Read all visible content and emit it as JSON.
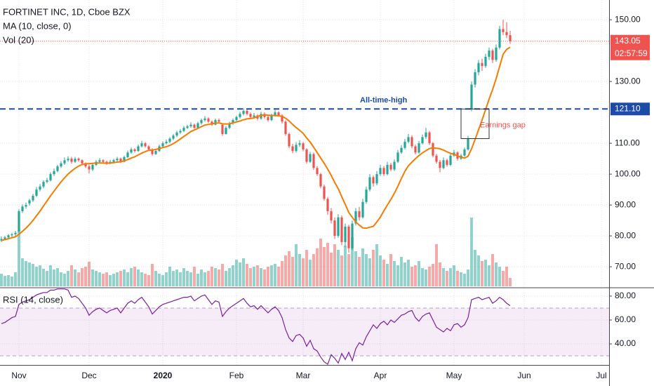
{
  "chart_data": {
    "type": "candlestick",
    "title": "FORTINET INC, 1D, Cboe BZX",
    "ma_label": "MA (10, close, 0)",
    "vol_label": "Vol (20)",
    "up_color": "#26a69a",
    "down_color": "#ef5350",
    "ma_color": "#f57c00",
    "grid": true,
    "xlim": [
      -0.4,
      173.2
    ],
    "xticks": [
      {
        "value": 5,
        "label": "Nov"
      },
      {
        "value": 25,
        "label": "Dec"
      },
      {
        "value": 46,
        "label": "2020",
        "bold": true
      },
      {
        "value": 67,
        "label": "Feb"
      },
      {
        "value": 86,
        "label": "Mar"
      },
      {
        "value": 108,
        "label": "Apr"
      },
      {
        "value": 129,
        "label": "May"
      },
      {
        "value": 149,
        "label": "Jun"
      },
      {
        "value": 171,
        "label": "Jul"
      }
    ],
    "ylim": [
      63.2,
      156.4
    ],
    "yticks": [
      {
        "value": 150,
        "label": "150.00"
      },
      {
        "value": 130,
        "label": "130.00"
      },
      {
        "value": 110,
        "label": "110.00"
      },
      {
        "value": 100,
        "label": "100.00"
      },
      {
        "value": 90,
        "label": "90.00"
      },
      {
        "value": 80,
        "label": "80.00"
      },
      {
        "value": 70,
        "label": "70.00"
      }
    ],
    "last": {
      "value": 143.05,
      "countdown": "02:57:59"
    },
    "ath": {
      "value": 121.1,
      "label": "121.10",
      "text": "All-time-high",
      "color": "#1e4aa8"
    },
    "gap": {
      "text": "Earnings gap",
      "top": 121.1,
      "bottom": 111.5
    },
    "ohlc": [
      [
        78.5,
        79.8,
        78,
        79
      ],
      [
        79,
        80,
        78.6,
        79.5
      ],
      [
        79.5,
        80.6,
        79.2,
        80.2
      ],
      [
        80.2,
        81,
        79.6,
        80.5
      ],
      [
        80.5,
        81.6,
        80,
        81
      ],
      [
        81.5,
        88.6,
        81,
        88
      ],
      [
        88,
        90.2,
        87.4,
        89.5
      ],
      [
        89.5,
        90.8,
        88.8,
        90
      ],
      [
        90.5,
        92,
        89.8,
        91.5
      ],
      [
        91.5,
        93.6,
        91,
        93
      ],
      [
        93,
        95.8,
        92.6,
        95
      ],
      [
        95,
        96.8,
        94.4,
        96
      ],
      [
        96,
        98,
        95.4,
        97.5
      ],
      [
        97.5,
        98.8,
        97,
        98
      ],
      [
        98,
        100.6,
        97.6,
        100
      ],
      [
        100,
        101.8,
        99.4,
        101
      ],
      [
        101,
        103,
        100.6,
        102.5
      ],
      [
        102.5,
        104.2,
        102,
        103.5
      ],
      [
        103.5,
        105.4,
        103,
        104.5
      ],
      [
        104.5,
        105.8,
        104,
        105
      ],
      [
        105,
        105.6,
        103.4,
        104
      ],
      [
        104,
        105.6,
        103.6,
        105
      ],
      [
        105,
        105.4,
        104,
        104.5
      ],
      [
        104.5,
        104.8,
        103,
        103.5
      ],
      [
        103.5,
        103.8,
        102,
        102.5
      ],
      [
        102.5,
        103,
        100.2,
        101.5
      ],
      [
        101.5,
        103.4,
        101,
        103
      ],
      [
        103,
        104.6,
        102.6,
        104
      ],
      [
        104,
        105.2,
        103.6,
        104.5
      ],
      [
        104.5,
        104.8,
        103.6,
        104
      ],
      [
        104,
        104.4,
        103,
        103.5
      ],
      [
        103.5,
        104.6,
        103.2,
        104
      ],
      [
        104,
        105,
        103.6,
        104.5
      ],
      [
        104.5,
        105.6,
        104,
        105
      ],
      [
        105,
        105.4,
        103.6,
        104
      ],
      [
        104,
        106,
        103.8,
        105.5
      ],
      [
        105.5,
        107.6,
        105.2,
        107
      ],
      [
        107,
        108.6,
        106.6,
        108
      ],
      [
        108,
        108.4,
        107,
        107.5
      ],
      [
        107.5,
        109.6,
        107.2,
        109
      ],
      [
        109,
        110.8,
        108.6,
        110
      ],
      [
        110,
        110.4,
        108.6,
        109
      ],
      [
        109,
        109.4,
        107.6,
        108
      ],
      [
        108,
        108.4,
        106,
        106.5
      ],
      [
        106.5,
        108,
        106.2,
        107.5
      ],
      [
        107.5,
        109.6,
        107.2,
        109
      ],
      [
        109,
        110.6,
        108.6,
        110
      ],
      [
        110,
        111.2,
        109.6,
        110.5
      ],
      [
        110.5,
        112,
        110,
        111.5
      ],
      [
        111.5,
        113,
        111,
        112.5
      ],
      [
        112.5,
        114,
        112,
        113.5
      ],
      [
        113.5,
        114.6,
        113,
        114
      ],
      [
        114,
        115.6,
        113.6,
        115
      ],
      [
        115,
        116,
        114.6,
        115.5
      ],
      [
        115.5,
        116.8,
        115,
        116
      ],
      [
        116,
        116.4,
        114.6,
        115
      ],
      [
        115,
        117,
        114.8,
        116.5
      ],
      [
        116.5,
        118,
        116,
        117.5
      ],
      [
        117.5,
        118.8,
        117,
        118
      ],
      [
        118,
        118.4,
        116.6,
        117
      ],
      [
        117,
        117.4,
        115.6,
        116
      ],
      [
        116,
        118,
        115.8,
        117.5
      ],
      [
        117.5,
        118,
        116.6,
        117
      ],
      [
        116,
        116.4,
        112.4,
        113
      ],
      [
        113,
        115.6,
        112.8,
        115
      ],
      [
        115,
        117,
        114.6,
        116.5
      ],
      [
        116.5,
        118,
        116,
        117.5
      ],
      [
        117.5,
        119,
        117,
        118.5
      ],
      [
        118.5,
        120.2,
        118,
        119.5
      ],
      [
        119.5,
        121.4,
        119,
        120.5
      ],
      [
        120.5,
        121,
        119,
        119.5
      ],
      [
        119.5,
        120,
        118,
        118.5
      ],
      [
        118.5,
        119.8,
        118,
        119
      ],
      [
        119,
        119.4,
        117.4,
        118
      ],
      [
        118,
        120.2,
        117.6,
        119.5
      ],
      [
        119.5,
        120,
        118,
        118.5
      ],
      [
        118.5,
        119,
        117,
        117.5
      ],
      [
        117.5,
        119.6,
        117.2,
        119
      ],
      [
        119,
        120.8,
        118.6,
        120
      ],
      [
        120,
        120.4,
        118.6,
        119
      ],
      [
        119,
        119.4,
        116.4,
        117
      ],
      [
        117,
        117.4,
        112.4,
        113
      ],
      [
        113,
        113.4,
        108.4,
        109
      ],
      [
        109,
        109.8,
        106.8,
        107.5
      ],
      [
        107.5,
        110.4,
        107,
        109.5
      ],
      [
        109.5,
        111,
        108.8,
        110
      ],
      [
        110,
        110.4,
        107.4,
        108
      ],
      [
        108,
        108.4,
        103.4,
        104
      ],
      [
        104,
        107.2,
        103.6,
        106.5
      ],
      [
        106.5,
        107,
        101.4,
        102
      ],
      [
        102,
        102.6,
        99.4,
        100
      ],
      [
        100,
        100.4,
        95.4,
        96
      ],
      [
        96,
        96.6,
        91.4,
        92
      ],
      [
        92,
        92.6,
        86.8,
        88
      ],
      [
        88,
        89,
        84,
        85
      ],
      [
        85,
        86,
        79,
        80
      ],
      [
        80,
        87,
        79.4,
        86
      ],
      [
        86,
        86.6,
        77,
        78
      ],
      [
        78,
        84,
        76.4,
        83
      ],
      [
        83,
        83.6,
        74.6,
        76
      ],
      [
        76,
        85,
        75.4,
        84
      ],
      [
        84,
        89,
        83.4,
        88
      ],
      [
        88,
        89.4,
        85,
        86
      ],
      [
        86,
        92,
        85.6,
        91
      ],
      [
        91,
        96,
        90.4,
        95
      ],
      [
        95,
        100,
        94.4,
        99
      ],
      [
        99,
        99.6,
        96,
        97
      ],
      [
        97,
        101,
        96.4,
        100
      ],
      [
        100,
        103,
        99.4,
        102
      ],
      [
        102,
        102.6,
        99.4,
        100
      ],
      [
        100,
        104,
        99.6,
        103
      ],
      [
        103,
        103.6,
        101,
        101.5
      ],
      [
        101.5,
        104.8,
        101,
        104
      ],
      [
        104,
        107.8,
        103.6,
        107
      ],
      [
        107,
        109.4,
        106.6,
        108.5
      ],
      [
        108.5,
        111.4,
        108,
        110.5
      ],
      [
        110.5,
        113,
        110,
        112
      ],
      [
        112,
        112.6,
        108.4,
        109
      ],
      [
        109,
        109.6,
        106.4,
        107
      ],
      [
        107,
        110.8,
        106.6,
        110
      ],
      [
        110,
        112.8,
        109.6,
        112
      ],
      [
        112,
        115,
        111.4,
        113.5
      ],
      [
        113.5,
        114,
        109.4,
        110
      ],
      [
        110,
        110.4,
        105.4,
        106
      ],
      [
        106,
        106.6,
        103.4,
        104
      ],
      [
        104,
        104.6,
        100.6,
        102
      ],
      [
        102,
        105.4,
        101.6,
        104.5
      ],
      [
        104.5,
        105,
        102.4,
        103
      ],
      [
        103,
        106.6,
        102.6,
        106
      ],
      [
        106,
        107.8,
        105.6,
        107
      ],
      [
        107,
        107.4,
        104.4,
        105
      ],
      [
        105,
        106.6,
        104.6,
        106
      ],
      [
        106,
        108.6,
        105.6,
        108
      ],
      [
        108,
        112.4,
        107.6,
        111.5
      ],
      [
        121,
        130,
        120.4,
        129
      ],
      [
        129,
        134,
        128,
        133
      ],
      [
        133,
        137,
        132,
        136
      ],
      [
        136,
        137.4,
        133.4,
        135
      ],
      [
        135,
        139,
        134.4,
        138
      ],
      [
        138,
        141,
        137,
        140
      ],
      [
        140,
        140.6,
        136,
        137
      ],
      [
        137,
        142,
        136.4,
        141
      ],
      [
        141,
        148,
        140.4,
        147
      ],
      [
        147,
        150,
        145,
        146
      ],
      [
        146,
        149.2,
        144,
        145
      ],
      [
        145,
        146.4,
        142.2,
        143.05
      ]
    ],
    "volume": [
      1.8,
      1.5,
      1.6,
      1.4,
      2.0,
      8.0,
      4.0,
      3.6,
      3.4,
      3.2,
      2.8,
      3.0,
      2.5,
      2.2,
      3.0,
      2.4,
      2.6,
      2.0,
      1.8,
      2.2,
      3.0,
      2.4,
      2.0,
      2.6,
      2.8,
      3.5,
      2.4,
      2.2,
      2.0,
      1.8,
      2.0,
      1.6,
      1.8,
      2.0,
      2.2,
      2.4,
      2.0,
      2.6,
      2.8,
      2.4,
      2.0,
      1.8,
      1.6,
      3.2,
      2.2,
      1.8,
      1.6,
      2.0,
      2.8,
      2.2,
      2.4,
      2.0,
      2.6,
      2.2,
      2.0,
      2.8,
      1.8,
      2.4,
      2.0,
      2.2,
      2.8,
      2.6,
      2.4,
      3.2,
      2.2,
      2.6,
      3.0,
      3.8,
      3.4,
      4.0,
      3.2,
      2.6,
      2.8,
      3.0,
      2.6,
      2.4,
      2.8,
      3.0,
      3.2,
      2.8,
      3.6,
      4.4,
      5.0,
      4.2,
      6.0,
      4.6,
      4.0,
      5.2,
      3.8,
      4.6,
      5.4,
      6.8,
      5.6,
      6.2,
      4.8,
      6.0,
      5.2,
      4.4,
      5.8,
      4.6,
      7.0,
      5.0,
      4.2,
      5.4,
      4.6,
      4.0,
      5.2,
      6.0,
      4.4,
      3.8,
      3.2,
      4.6,
      3.6,
      3.0,
      4.2,
      3.4,
      3.8,
      2.8,
      3.0,
      3.6,
      2.6,
      2.4,
      2.8,
      3.2,
      6.0,
      3.4,
      2.6,
      2.2,
      2.6,
      3.0,
      2.2,
      2.0,
      1.8,
      2.4,
      9.8,
      5.2,
      4.4,
      3.6,
      3.8,
      3.0,
      4.6,
      3.4,
      2.8,
      2.2,
      2.8,
      1.2
    ],
    "ma": [
      78.5,
      78.8,
      79.1,
      79.4,
      79.7,
      80.5,
      81.5,
      82.5,
      83.7,
      85,
      86.5,
      88,
      89.7,
      91.3,
      93,
      94.5,
      96,
      97.5,
      98.8,
      100,
      101,
      101.9,
      102.6,
      103.1,
      103.4,
      103.4,
      103.5,
      103.6,
      103.6,
      103.6,
      103.5,
      103.6,
      103.7,
      103.9,
      104,
      104.3,
      104.7,
      105.2,
      105.6,
      106.2,
      106.8,
      107.3,
      107.7,
      107.8,
      108,
      108.3,
      108.6,
      108.9,
      109.3,
      109.9,
      110.6,
      111.4,
      112.2,
      113,
      113.8,
      114.3,
      114.8,
      115.4,
      115.9,
      116.1,
      116.3,
      116.5,
      116.6,
      116.3,
      116.2,
      116.3,
      116.6,
      116.9,
      117.2,
      117.6,
      117.9,
      118,
      118.2,
      118.7,
      119,
      119.2,
      119.1,
      119,
      119,
      118.9,
      118.7,
      118.1,
      117.2,
      116.1,
      115.1,
      114.2,
      113.2,
      111.7,
      110.4,
      108.7,
      107,
      105.2,
      103.5,
      101.6,
      99.6,
      97.3,
      95.3,
      92.7,
      90.2,
      87.6,
      86,
      84.5,
      83.5,
      82.6,
      82.5,
      82.8,
      83.1,
      84.5,
      86.1,
      88.1,
      90,
      91.8,
      93.8,
      96.1,
      98.6,
      100.9,
      102.7,
      103.9,
      105,
      106,
      106.9,
      107.6,
      108.3,
      108.5,
      108.4,
      108.2,
      107.8,
      107.2,
      106.7,
      106.4,
      105.9,
      105.5,
      105.2,
      105.8,
      108.2,
      111.2,
      114.4,
      117.5,
      120.9,
      124.3,
      127.4,
      130.9,
      134.9,
      138.8,
      140.4,
      141.1
    ],
    "rsi": {
      "label": "RSI (14, close)",
      "color": "#7b1fa2",
      "band": [
        30,
        70
      ],
      "ylim": [
        22.4,
        87
      ],
      "yticks": [
        {
          "value": 80,
          "label": "80.00"
        },
        {
          "value": 60,
          "label": "60.00"
        },
        {
          "value": 40,
          "label": "40.00"
        }
      ],
      "values": [
        57,
        58,
        60,
        62,
        63,
        73,
        75,
        76,
        77,
        79,
        81,
        82,
        83,
        83,
        85,
        85,
        86,
        86,
        86,
        85,
        79,
        80,
        78,
        74,
        70,
        64,
        67,
        69,
        70,
        68,
        66,
        68,
        69,
        70,
        66,
        70,
        74,
        76,
        74,
        77,
        79,
        75,
        71,
        65,
        68,
        71,
        73,
        74,
        75,
        76,
        77,
        78,
        79,
        79,
        80,
        76,
        78,
        80,
        81,
        77,
        73,
        76,
        75,
        63,
        67,
        70,
        72,
        74,
        76,
        78,
        74,
        71,
        72,
        69,
        72,
        69,
        66,
        69,
        71,
        68,
        62,
        52,
        45,
        42,
        47,
        48,
        45,
        38,
        43,
        36,
        34,
        29,
        25,
        23,
        31,
        28,
        24,
        32,
        27,
        33,
        26,
        36,
        41,
        39,
        46,
        51,
        56,
        53,
        57,
        59,
        56,
        60,
        58,
        61,
        64,
        65,
        67,
        68,
        62,
        59,
        63,
        65,
        66,
        60,
        54,
        52,
        50,
        53,
        51,
        56,
        57,
        54,
        56,
        62,
        77,
        78,
        79,
        77,
        78,
        79,
        74,
        76,
        79,
        77,
        74,
        72
      ]
    }
  }
}
